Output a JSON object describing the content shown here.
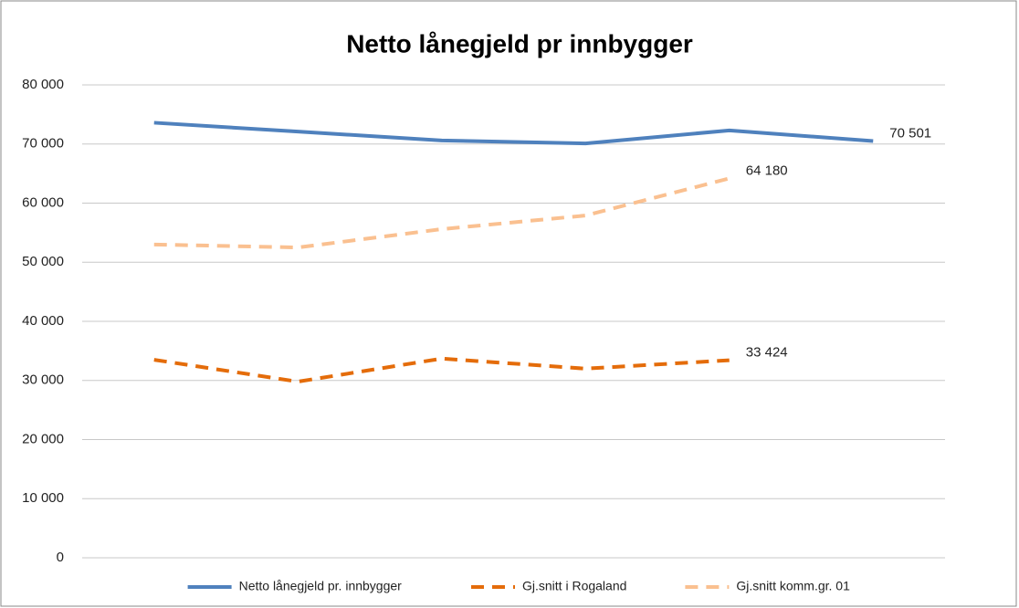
{
  "chart_data": {
    "type": "line",
    "title": "Netto lånegjeld pr innbygger",
    "categories": [
      null,
      null,
      null,
      null,
      null,
      null
    ],
    "series": [
      {
        "name": "Netto lånegjeld pr. innbygger",
        "color": "#4f81bd",
        "dash": "solid",
        "values": [
          73600,
          72100,
          70600,
          70100,
          72300,
          70501
        ],
        "value_labels": [
          null,
          null,
          null,
          null,
          null,
          "70 501"
        ]
      },
      {
        "name": "Gj.snitt i Rogaland",
        "color": "#e46c0a",
        "dash": "dashed",
        "values": [
          33500,
          29800,
          33700,
          32000,
          33424,
          null
        ],
        "value_labels": [
          null,
          null,
          null,
          null,
          "33 424",
          null
        ]
      },
      {
        "name": "Gj.snitt komm.gr. 01",
        "color": "#fac090",
        "dash": "dashed",
        "values": [
          53000,
          52500,
          55600,
          57900,
          64180,
          null
        ],
        "value_labels": [
          null,
          null,
          null,
          null,
          "64 180",
          null
        ]
      }
    ],
    "ylim": [
      0,
      80000
    ],
    "yticks": [
      0,
      {
        "value": 10000,
        "label": "10 000"
      },
      {
        "value": 20000,
        "label": "20 000"
      },
      {
        "value": 30000,
        "label": "30 000"
      },
      {
        "value": 40000,
        "label": "40 000"
      },
      {
        "value": 50000,
        "label": "50 000"
      },
      {
        "value": 60000,
        "label": "60 000"
      },
      {
        "value": 70000,
        "label": "70 000"
      },
      {
        "value": 80000,
        "label": "80 000"
      }
    ],
    "grid": true,
    "legend": "bottom"
  }
}
